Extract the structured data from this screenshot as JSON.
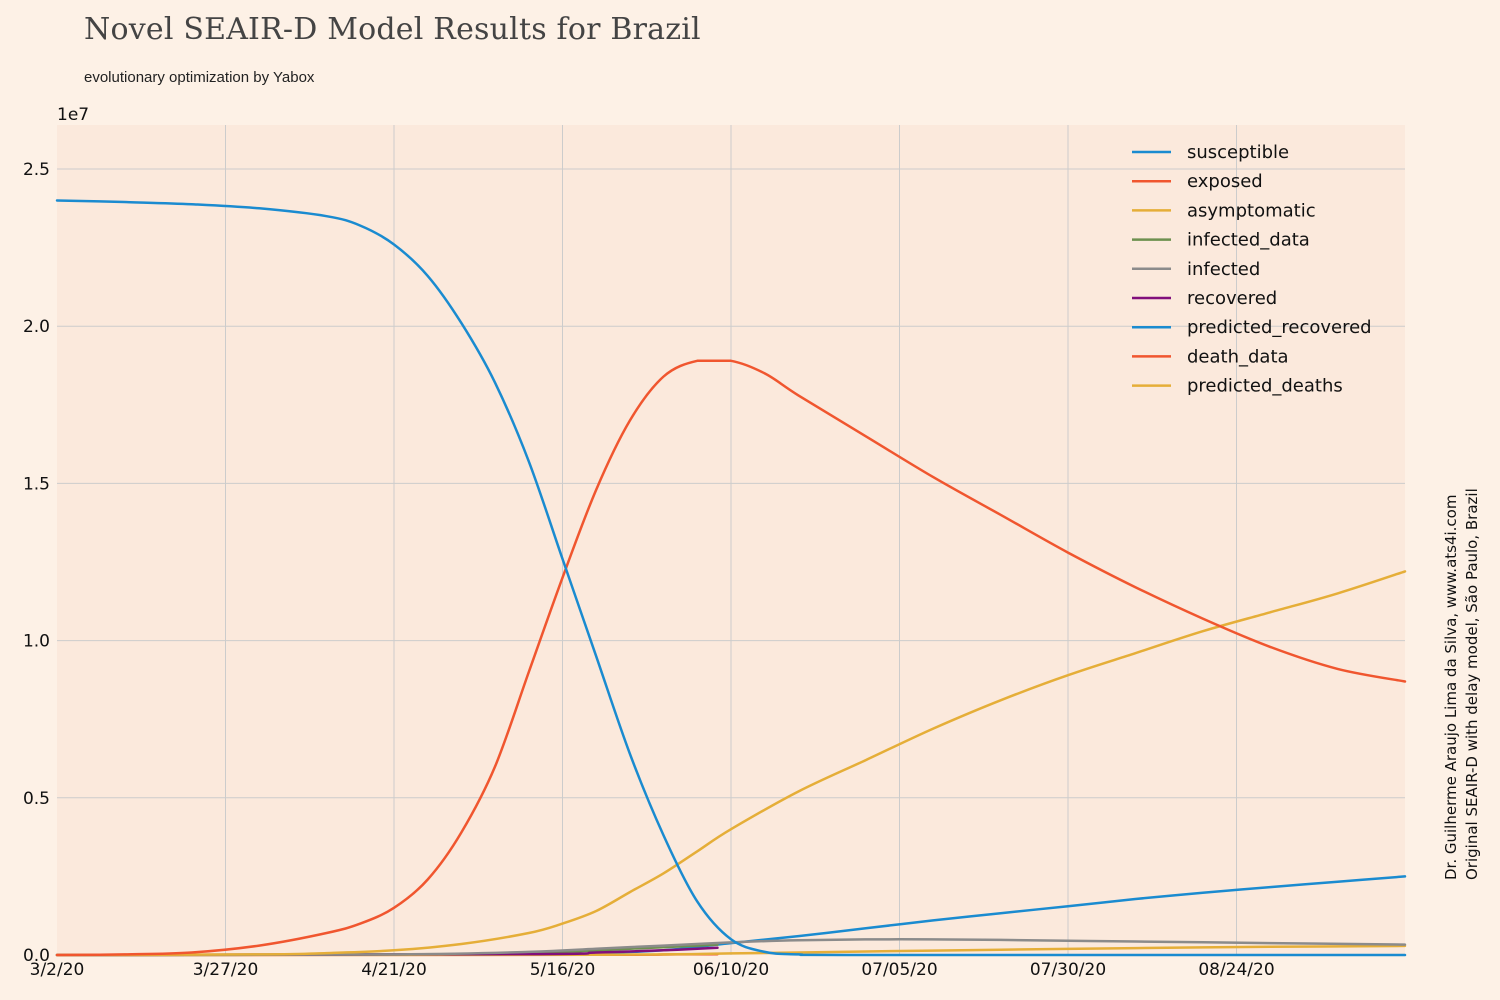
{
  "title": "Novel SEAIR-D Model Results for Brazil",
  "subtitle": "evolutionary optimization by Yabox",
  "side_note": {
    "line1": "Dr. Guilherme Araujo Lima da Silva, www.ats4i.com",
    "line2": "Original SEAIR-D with delay model, São Paulo, Brazil"
  },
  "colors": {
    "background": "#fdf1e6",
    "plot_background": "#fbe9dc",
    "grid": "#cccccc"
  },
  "chart_data": {
    "type": "line",
    "x_unit": "days since 3/2/20",
    "x_range": [
      0,
      200
    ],
    "ylim": [
      0,
      26400000
    ],
    "y_offset_label": "1e7",
    "x_ticks": [
      {
        "x": 0,
        "label": "3/2/20"
      },
      {
        "x": 25,
        "label": "3/27/20"
      },
      {
        "x": 50,
        "label": "4/21/20"
      },
      {
        "x": 75,
        "label": "5/16/20"
      },
      {
        "x": 100,
        "label": "06/10/20"
      },
      {
        "x": 125,
        "label": "07/05/20"
      },
      {
        "x": 150,
        "label": "07/30/20"
      },
      {
        "x": 175,
        "label": "08/24/20"
      }
    ],
    "y_ticks": [
      {
        "y": 0,
        "label": "0.0"
      },
      {
        "y": 5000000,
        "label": "0.5"
      },
      {
        "y": 10000000,
        "label": "1.0"
      },
      {
        "y": 15000000,
        "label": "1.5"
      },
      {
        "y": 20000000,
        "label": "2.0"
      },
      {
        "y": 25000000,
        "label": "2.5"
      }
    ],
    "grid": true,
    "legend_position": "top-right",
    "series": [
      {
        "name": "susceptible",
        "color": "#1a8bd0",
        "points": [
          [
            0,
            24000000
          ],
          [
            10,
            23950000
          ],
          [
            20,
            23880000
          ],
          [
            30,
            23750000
          ],
          [
            40,
            23500000
          ],
          [
            45,
            23200000
          ],
          [
            50,
            22600000
          ],
          [
            55,
            21600000
          ],
          [
            60,
            20100000
          ],
          [
            65,
            18200000
          ],
          [
            70,
            15700000
          ],
          [
            75,
            12600000
          ],
          [
            80,
            9500000
          ],
          [
            85,
            6400000
          ],
          [
            90,
            3800000
          ],
          [
            95,
            1700000
          ],
          [
            100,
            500000
          ],
          [
            105,
            100000
          ],
          [
            110,
            20000
          ],
          [
            120,
            0
          ],
          [
            200,
            0
          ]
        ]
      },
      {
        "name": "exposed",
        "color": "#f0562f",
        "points": [
          [
            0,
            0
          ],
          [
            10,
            20000
          ],
          [
            20,
            80000
          ],
          [
            30,
            300000
          ],
          [
            40,
            700000
          ],
          [
            45,
            1000000
          ],
          [
            50,
            1500000
          ],
          [
            55,
            2400000
          ],
          [
            60,
            3900000
          ],
          [
            65,
            6000000
          ],
          [
            70,
            9000000
          ],
          [
            75,
            12000000
          ],
          [
            80,
            14800000
          ],
          [
            85,
            17000000
          ],
          [
            90,
            18400000
          ],
          [
            95,
            18900000
          ],
          [
            100,
            18900000
          ],
          [
            105,
            18500000
          ],
          [
            110,
            17800000
          ],
          [
            120,
            16500000
          ],
          [
            130,
            15200000
          ],
          [
            140,
            14000000
          ],
          [
            150,
            12800000
          ],
          [
            160,
            11700000
          ],
          [
            170,
            10700000
          ],
          [
            180,
            9800000
          ],
          [
            190,
            9100000
          ],
          [
            200,
            8700000
          ]
        ]
      },
      {
        "name": "asymptomatic",
        "color": "#e5ae38",
        "points": [
          [
            0,
            0
          ],
          [
            30,
            20000
          ],
          [
            40,
            60000
          ],
          [
            50,
            150000
          ],
          [
            60,
            350000
          ],
          [
            70,
            700000
          ],
          [
            75,
            1000000
          ],
          [
            80,
            1400000
          ],
          [
            85,
            2000000
          ],
          [
            90,
            2600000
          ],
          [
            95,
            3300000
          ],
          [
            100,
            4000000
          ],
          [
            110,
            5200000
          ],
          [
            120,
            6200000
          ],
          [
            130,
            7200000
          ],
          [
            140,
            8100000
          ],
          [
            150,
            8900000
          ],
          [
            160,
            9600000
          ],
          [
            170,
            10300000
          ],
          [
            180,
            10900000
          ],
          [
            190,
            11500000
          ],
          [
            200,
            12200000
          ]
        ]
      },
      {
        "name": "infected_data",
        "color": "#6d904f",
        "points": [
          [
            0,
            0
          ],
          [
            60,
            30000
          ],
          [
            75,
            100000
          ],
          [
            85,
            200000
          ],
          [
            95,
            300000
          ],
          [
            98,
            330000
          ]
        ]
      },
      {
        "name": "infected",
        "color": "#8b8b8b",
        "points": [
          [
            0,
            0
          ],
          [
            50,
            20000
          ],
          [
            70,
            100000
          ],
          [
            80,
            200000
          ],
          [
            90,
            300000
          ],
          [
            100,
            400000
          ],
          [
            110,
            470000
          ],
          [
            125,
            500000
          ],
          [
            140,
            480000
          ],
          [
            160,
            430000
          ],
          [
            180,
            380000
          ],
          [
            200,
            330000
          ]
        ]
      },
      {
        "name": "recovered",
        "color": "#810f7c",
        "points": [
          [
            0,
            0
          ],
          [
            70,
            30000
          ],
          [
            80,
            80000
          ],
          [
            90,
            150000
          ],
          [
            98,
            230000
          ]
        ]
      },
      {
        "name": "predicted_recovered",
        "color": "#1a8bd0",
        "points": [
          [
            0,
            0
          ],
          [
            70,
            20000
          ],
          [
            80,
            60000
          ],
          [
            90,
            150000
          ],
          [
            100,
            380000
          ],
          [
            110,
            600000
          ],
          [
            120,
            850000
          ],
          [
            130,
            1100000
          ],
          [
            140,
            1330000
          ],
          [
            150,
            1550000
          ],
          [
            160,
            1780000
          ],
          [
            170,
            1980000
          ],
          [
            180,
            2160000
          ],
          [
            190,
            2330000
          ],
          [
            200,
            2500000
          ]
        ]
      },
      {
        "name": "death_data",
        "color": "#f0562f",
        "points": [
          [
            0,
            0
          ],
          [
            80,
            5000
          ],
          [
            90,
            15000
          ],
          [
            98,
            25000
          ]
        ]
      },
      {
        "name": "predicted_deaths",
        "color": "#e5ae38",
        "points": [
          [
            0,
            0
          ],
          [
            80,
            10000
          ],
          [
            100,
            50000
          ],
          [
            120,
            110000
          ],
          [
            140,
            170000
          ],
          [
            160,
            220000
          ],
          [
            180,
            260000
          ],
          [
            200,
            290000
          ]
        ]
      }
    ]
  }
}
